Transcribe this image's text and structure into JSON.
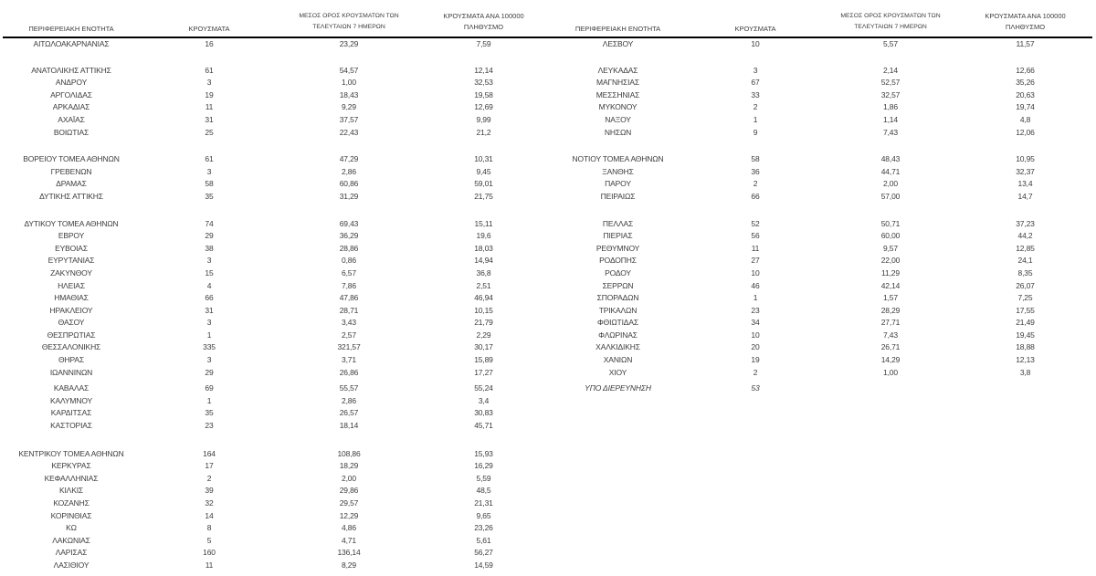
{
  "table": {
    "header": {
      "region": "ΠΕΡΙΦΕΡΕΙΑΚΗ ΕΝΟΤΗΤΑ",
      "cases": "ΚΡΟΥΣΜΑΤΑ",
      "avg7_line1": "ΜΕΣΟΣ ΟΡΟΣ ΚΡΟΥΣΜΑΤΩΝ ΤΩΝ",
      "avg7_line2": "ΤΕΛΕΥΤΑΙΩΝ 7 ΗΜΕΡΩΝ",
      "per100k_line1": "ΚΡΟΥΣΜΑΤΑ ΑΝΑ 100000",
      "per100k_line2": "ΠΛΗΘΥΣΜΟ"
    },
    "colors": {
      "text": "#3c3c3c",
      "header_rule": "#000000",
      "background": "#ffffff"
    },
    "rows": [
      {
        "left": [
          "ΑΙΤΩΛΟΑΚΑΡΝΑΝΙΑΣ",
          "16",
          "23,29",
          "7,59"
        ],
        "right": [
          "ΛΕΣΒΟΥ",
          "10",
          "5,57",
          "11,57"
        ],
        "gap_after": 15
      },
      {
        "left": [
          "ΑΝΑΤΟΛΙΚΗΣ ΑΤΤΙΚΗΣ",
          "61",
          "54,57",
          "12,14"
        ],
        "right": [
          "ΛΕΥΚΑΔΑΣ",
          "3",
          "2,14",
          "12,66"
        ]
      },
      {
        "left": [
          "ΑΝΔΡΟΥ",
          "3",
          "1,00",
          "32,53"
        ],
        "right": [
          "ΜΑΓΝΗΣΙΑΣ",
          "67",
          "52,57",
          "35,26"
        ]
      },
      {
        "left": [
          "ΑΡΓΟΛΙΔΑΣ",
          "19",
          "18,43",
          "19,58"
        ],
        "right": [
          "ΜΕΣΣΗΝΙΑΣ",
          "33",
          "32,57",
          "20,63"
        ]
      },
      {
        "left": [
          "ΑΡΚΑΔΙΑΣ",
          "11",
          "9,29",
          "12,69"
        ],
        "right": [
          "ΜΥΚΟΝΟΥ",
          "2",
          "1,86",
          "19,74"
        ]
      },
      {
        "left": [
          "ΑΧΑΪΑΣ",
          "31",
          "37,57",
          "9,99"
        ],
        "right": [
          "ΝΑΞΟΥ",
          "1",
          "1,14",
          "4,8"
        ]
      },
      {
        "left": [
          "ΒΟΙΩΤΙΑΣ",
          "25",
          "22,43",
          "21,2"
        ],
        "right": [
          "ΝΗΣΩΝ",
          "9",
          "7,43",
          "12,06"
        ],
        "gap_after": 16
      },
      {
        "left": [
          "ΒΟΡΕΙΟΥ ΤΟΜΕΑ ΑΘΗΝΩΝ",
          "61",
          "47,29",
          "10,31"
        ],
        "right": [
          "ΝΟΤΙΟΥ ΤΟΜΕΑ ΑΘΗΝΩΝ",
          "58",
          "48,43",
          "10,95"
        ]
      },
      {
        "left": [
          "ΓΡΕΒΕΝΩΝ",
          "3",
          "2,86",
          "9,45"
        ],
        "right": [
          "ΞΑΝΘΗΣ",
          "36",
          "44,71",
          "32,37"
        ]
      },
      {
        "left": [
          "ΔΡΑΜΑΣ",
          "58",
          "60,86",
          "59,01"
        ],
        "right": [
          "ΠΑΡΟΥ",
          "2",
          "2,00",
          "13,4"
        ]
      },
      {
        "left": [
          "ΔΥΤΙΚΗΣ ΑΤΤΙΚΗΣ",
          "35",
          "31,29",
          "21,75"
        ],
        "right": [
          "ΠΕΙΡΑΙΩΣ",
          "66",
          "57,00",
          "14,7"
        ],
        "gap_after": 16
      },
      {
        "left": [
          "ΔΥΤΙΚΟΥ ΤΟΜΕΑ ΑΘΗΝΩΝ",
          "74",
          "69,43",
          "15,11"
        ],
        "right": [
          "ΠΕΛΛΑΣ",
          "52",
          "50,71",
          "37,23"
        ]
      },
      {
        "left": [
          "ΕΒΡΟΥ",
          "29",
          "36,29",
          "19,6"
        ],
        "right": [
          "ΠΙΕΡΙΑΣ",
          "56",
          "60,00",
          "44,2"
        ]
      },
      {
        "left": [
          "ΕΥΒΟΙΑΣ",
          "38",
          "28,86",
          "18,03"
        ],
        "right": [
          "ΡΕΘΥΜΝΟΥ",
          "11",
          "9,57",
          "12,85"
        ]
      },
      {
        "left": [
          "ΕΥΡΥΤΑΝΙΑΣ",
          "3",
          "0,86",
          "14,94"
        ],
        "right": [
          "ΡΟΔΟΠΗΣ",
          "27",
          "22,00",
          "24,1"
        ]
      },
      {
        "left": [
          "ΖΑΚΥΝΘΟΥ",
          "15",
          "6,57",
          "36,8"
        ],
        "right": [
          "ΡΟΔΟΥ",
          "10",
          "11,29",
          "8,35"
        ]
      },
      {
        "left": [
          "ΗΛΕΙΑΣ",
          "4",
          "7,86",
          "2,51"
        ],
        "right": [
          "ΣΕΡΡΩΝ",
          "46",
          "42,14",
          "26,07"
        ]
      },
      {
        "left": [
          "ΗΜΑΘΙΑΣ",
          "66",
          "47,86",
          "46,94"
        ],
        "right": [
          "ΣΠΟΡΑΔΩΝ",
          "1",
          "1,57",
          "7,25"
        ]
      },
      {
        "left": [
          "ΗΡΑΚΛΕΙΟΥ",
          "31",
          "28,71",
          "10,15"
        ],
        "right": [
          "ΤΡΙΚΑΛΩΝ",
          "23",
          "28,29",
          "17,55"
        ]
      },
      {
        "left": [
          "ΘΑΣΟΥ",
          "3",
          "3,43",
          "21,79"
        ],
        "right": [
          "ΦΘΙΩΤΙΔΑΣ",
          "34",
          "27,71",
          "21,49"
        ]
      },
      {
        "left": [
          "ΘΕΣΠΡΩΤΙΑΣ",
          "1",
          "2,57",
          "2,29"
        ],
        "right": [
          "ΦΛΩΡΙΝΑΣ",
          "10",
          "7,43",
          "19,45"
        ]
      },
      {
        "left": [
          "ΘΕΣΣΑΛΟΝΙΚΗΣ",
          "335",
          "321,57",
          "30,17"
        ],
        "right": [
          "ΧΑΛΚΙΔΙΚΗΣ",
          "20",
          "26,71",
          "18,88"
        ]
      },
      {
        "left": [
          "ΘΗΡΑΣ",
          "3",
          "3,71",
          "15,89"
        ],
        "right": [
          "ΧΑΝΙΩΝ",
          "19",
          "14,29",
          "12,13"
        ]
      },
      {
        "left": [
          "ΙΩΑΝΝΙΝΩΝ",
          "29",
          "26,86",
          "17,27"
        ],
        "right": [
          "ΧΙΟΥ",
          "2",
          "1,00",
          "3,8"
        ],
        "gap_after": 4
      },
      {
        "left": [
          "ΚΑΒΑΛΑΣ",
          "69",
          "55,57",
          "55,24"
        ],
        "right": [
          "ΥΠΟ ΔΙΕΡΕΥΝΗΣΗ",
          "53",
          "",
          ""
        ],
        "right_italic": true
      },
      {
        "left": [
          "ΚΑΛΥΜΝΟΥ",
          "1",
          "2,86",
          "3,4"
        ]
      },
      {
        "left": [
          "ΚΑΡΔΙΤΣΑΣ",
          "35",
          "26,57",
          "30,83"
        ]
      },
      {
        "left": [
          "ΚΑΣΤΟΡΙΑΣ",
          "23",
          "18,14",
          "45,71"
        ],
        "gap_after": 17
      },
      {
        "left": [
          "ΚΕΝΤΡΙΚΟΥ ΤΟΜΕΑ ΑΘΗΝΩΝ",
          "164",
          "108,86",
          "15,93"
        ]
      },
      {
        "left": [
          "ΚΕΡΚΥΡΑΣ",
          "17",
          "18,29",
          "16,29"
        ]
      },
      {
        "left": [
          "ΚΕΦΑΛΛΗΝΙΑΣ",
          "2",
          "2,00",
          "5,59"
        ]
      },
      {
        "left": [
          "ΚΙΛΚΙΣ",
          "39",
          "29,86",
          "48,5"
        ]
      },
      {
        "left": [
          "ΚΟΖΑΝΗΣ",
          "32",
          "29,57",
          "21,31"
        ]
      },
      {
        "left": [
          "ΚΟΡΙΝΘΙΑΣ",
          "14",
          "12,29",
          "9,65"
        ]
      },
      {
        "left": [
          "ΚΩ",
          "8",
          "4,86",
          "23,26"
        ]
      },
      {
        "left": [
          "ΛΑΚΩΝΙΑΣ",
          "5",
          "4,71",
          "5,61"
        ]
      },
      {
        "left": [
          "ΛΑΡΙΣΑΣ",
          "160",
          "136,14",
          "56,27"
        ]
      },
      {
        "left": [
          "ΛΑΣΙΘΙΟΥ",
          "11",
          "8,29",
          "14,59"
        ]
      }
    ]
  }
}
